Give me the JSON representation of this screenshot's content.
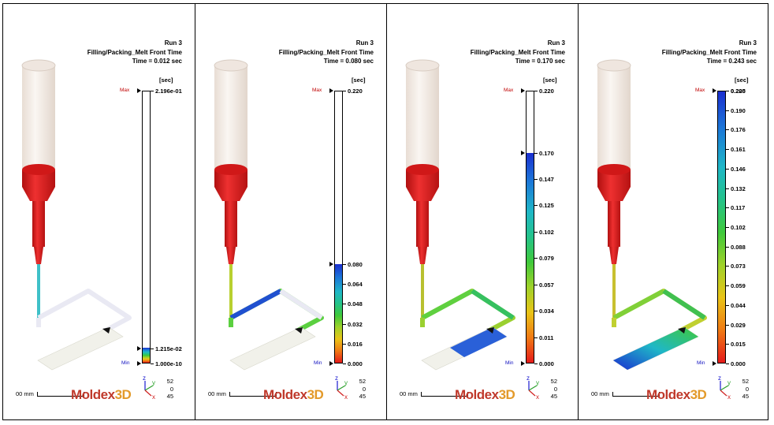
{
  "panels": [
    {
      "run": "Run 3",
      "result": "Filling/Packing_Melt Front Time",
      "time": "Time = 0.012 sec",
      "unit": "[sec]",
      "max_label": "Max",
      "min_label": "Min",
      "ticks": [
        "2.196e-01",
        "1.215e-02",
        "1.000e-10"
      ],
      "fill_fraction": 0.055,
      "scale_label": "00 mm",
      "logo_a": "Moldex",
      "logo_b": "3D",
      "axis_z": "z",
      "axis_y": "y",
      "axis_x": "x",
      "rot_1": "52",
      "rot_2": "0",
      "rot_3": "45"
    },
    {
      "run": "Run 3",
      "result": "Filling/Packing_Melt Front Time",
      "time": "Time = 0.080 sec",
      "unit": "[sec]",
      "max_label": "Max",
      "min_label": "Min",
      "ticks": [
        "0.220",
        "0.080",
        "0.064",
        "0.048",
        "0.032",
        "0.016",
        "0.000"
      ],
      "fill_fraction": 0.364,
      "scale_label": "00 mm",
      "logo_a": "Moldex",
      "logo_b": "3D",
      "axis_z": "z",
      "axis_y": "y",
      "axis_x": "x",
      "rot_1": "52",
      "rot_2": "0",
      "rot_3": "45"
    },
    {
      "run": "Run 3",
      "result": "Filling/Packing_Melt Front Time",
      "time": "Time = 0.170 sec",
      "unit": "[sec]",
      "max_label": "Max",
      "min_label": "Min",
      "ticks": [
        "0.220",
        "0.170",
        "0.147",
        "0.125",
        "0.102",
        "0.079",
        "0.057",
        "0.034",
        "0.011",
        "0.000"
      ],
      "fill_fraction": 0.773,
      "scale_label": "00 mm",
      "logo_a": "Moldex",
      "logo_b": "3D",
      "axis_z": "z",
      "axis_y": "y",
      "axis_x": "x",
      "rot_1": "52",
      "rot_2": "0",
      "rot_3": "45"
    },
    {
      "run": "Run 3",
      "result": "Filling/Packing_Melt Front Time",
      "time": "Time = 0.243 sec",
      "unit": "[sec]",
      "max_label": "Max",
      "min_label": "Min",
      "ticks": [
        "0.220",
        "0.205",
        "0.190",
        "0.176",
        "0.161",
        "0.146",
        "0.132",
        "0.117",
        "0.102",
        "0.088",
        "0.073",
        "0.059",
        "0.044",
        "0.029",
        "0.015",
        "0.000"
      ],
      "fill_fraction": 1.0,
      "scale_label": "00 mm",
      "logo_a": "Moldex",
      "logo_b": "3D",
      "axis_z": "z",
      "axis_y": "y",
      "axis_x": "x",
      "rot_1": "52",
      "rot_2": "0",
      "rot_3": "45"
    }
  ],
  "colors": {
    "barrel": "#f3ebe5",
    "nozzle": "#dd1c1c",
    "gradient_low": "#e21717",
    "gradient_high": "#1a1ad0",
    "unfilled": "#e9e9f3",
    "plate_unfilled": "#f1f1ea"
  }
}
